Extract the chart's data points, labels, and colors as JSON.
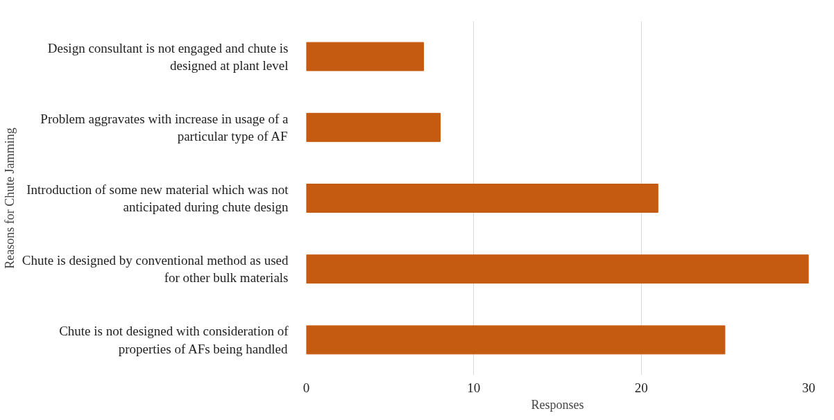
{
  "chart_data": {
    "type": "bar",
    "orientation": "horizontal",
    "xlabel": "Responses",
    "ylabel": "Reasons for Chute Jamming",
    "categories": [
      "Design consultant is not engaged and chute is designed at plant level",
      "Problem aggravates with increase in usage of a particular type of AF",
      "Introduction of some new material which was not anticipated during chute design",
      "Chute is designed by conventional method as used for other bulk materials",
      "Chute is not designed with consideration of properties of AFs being handled"
    ],
    "values": [
      7,
      8,
      21,
      30,
      25
    ],
    "color": "#c55a11",
    "xlim": [
      0,
      30
    ],
    "xticks": [
      0,
      10,
      20,
      30
    ],
    "grid": "x"
  }
}
